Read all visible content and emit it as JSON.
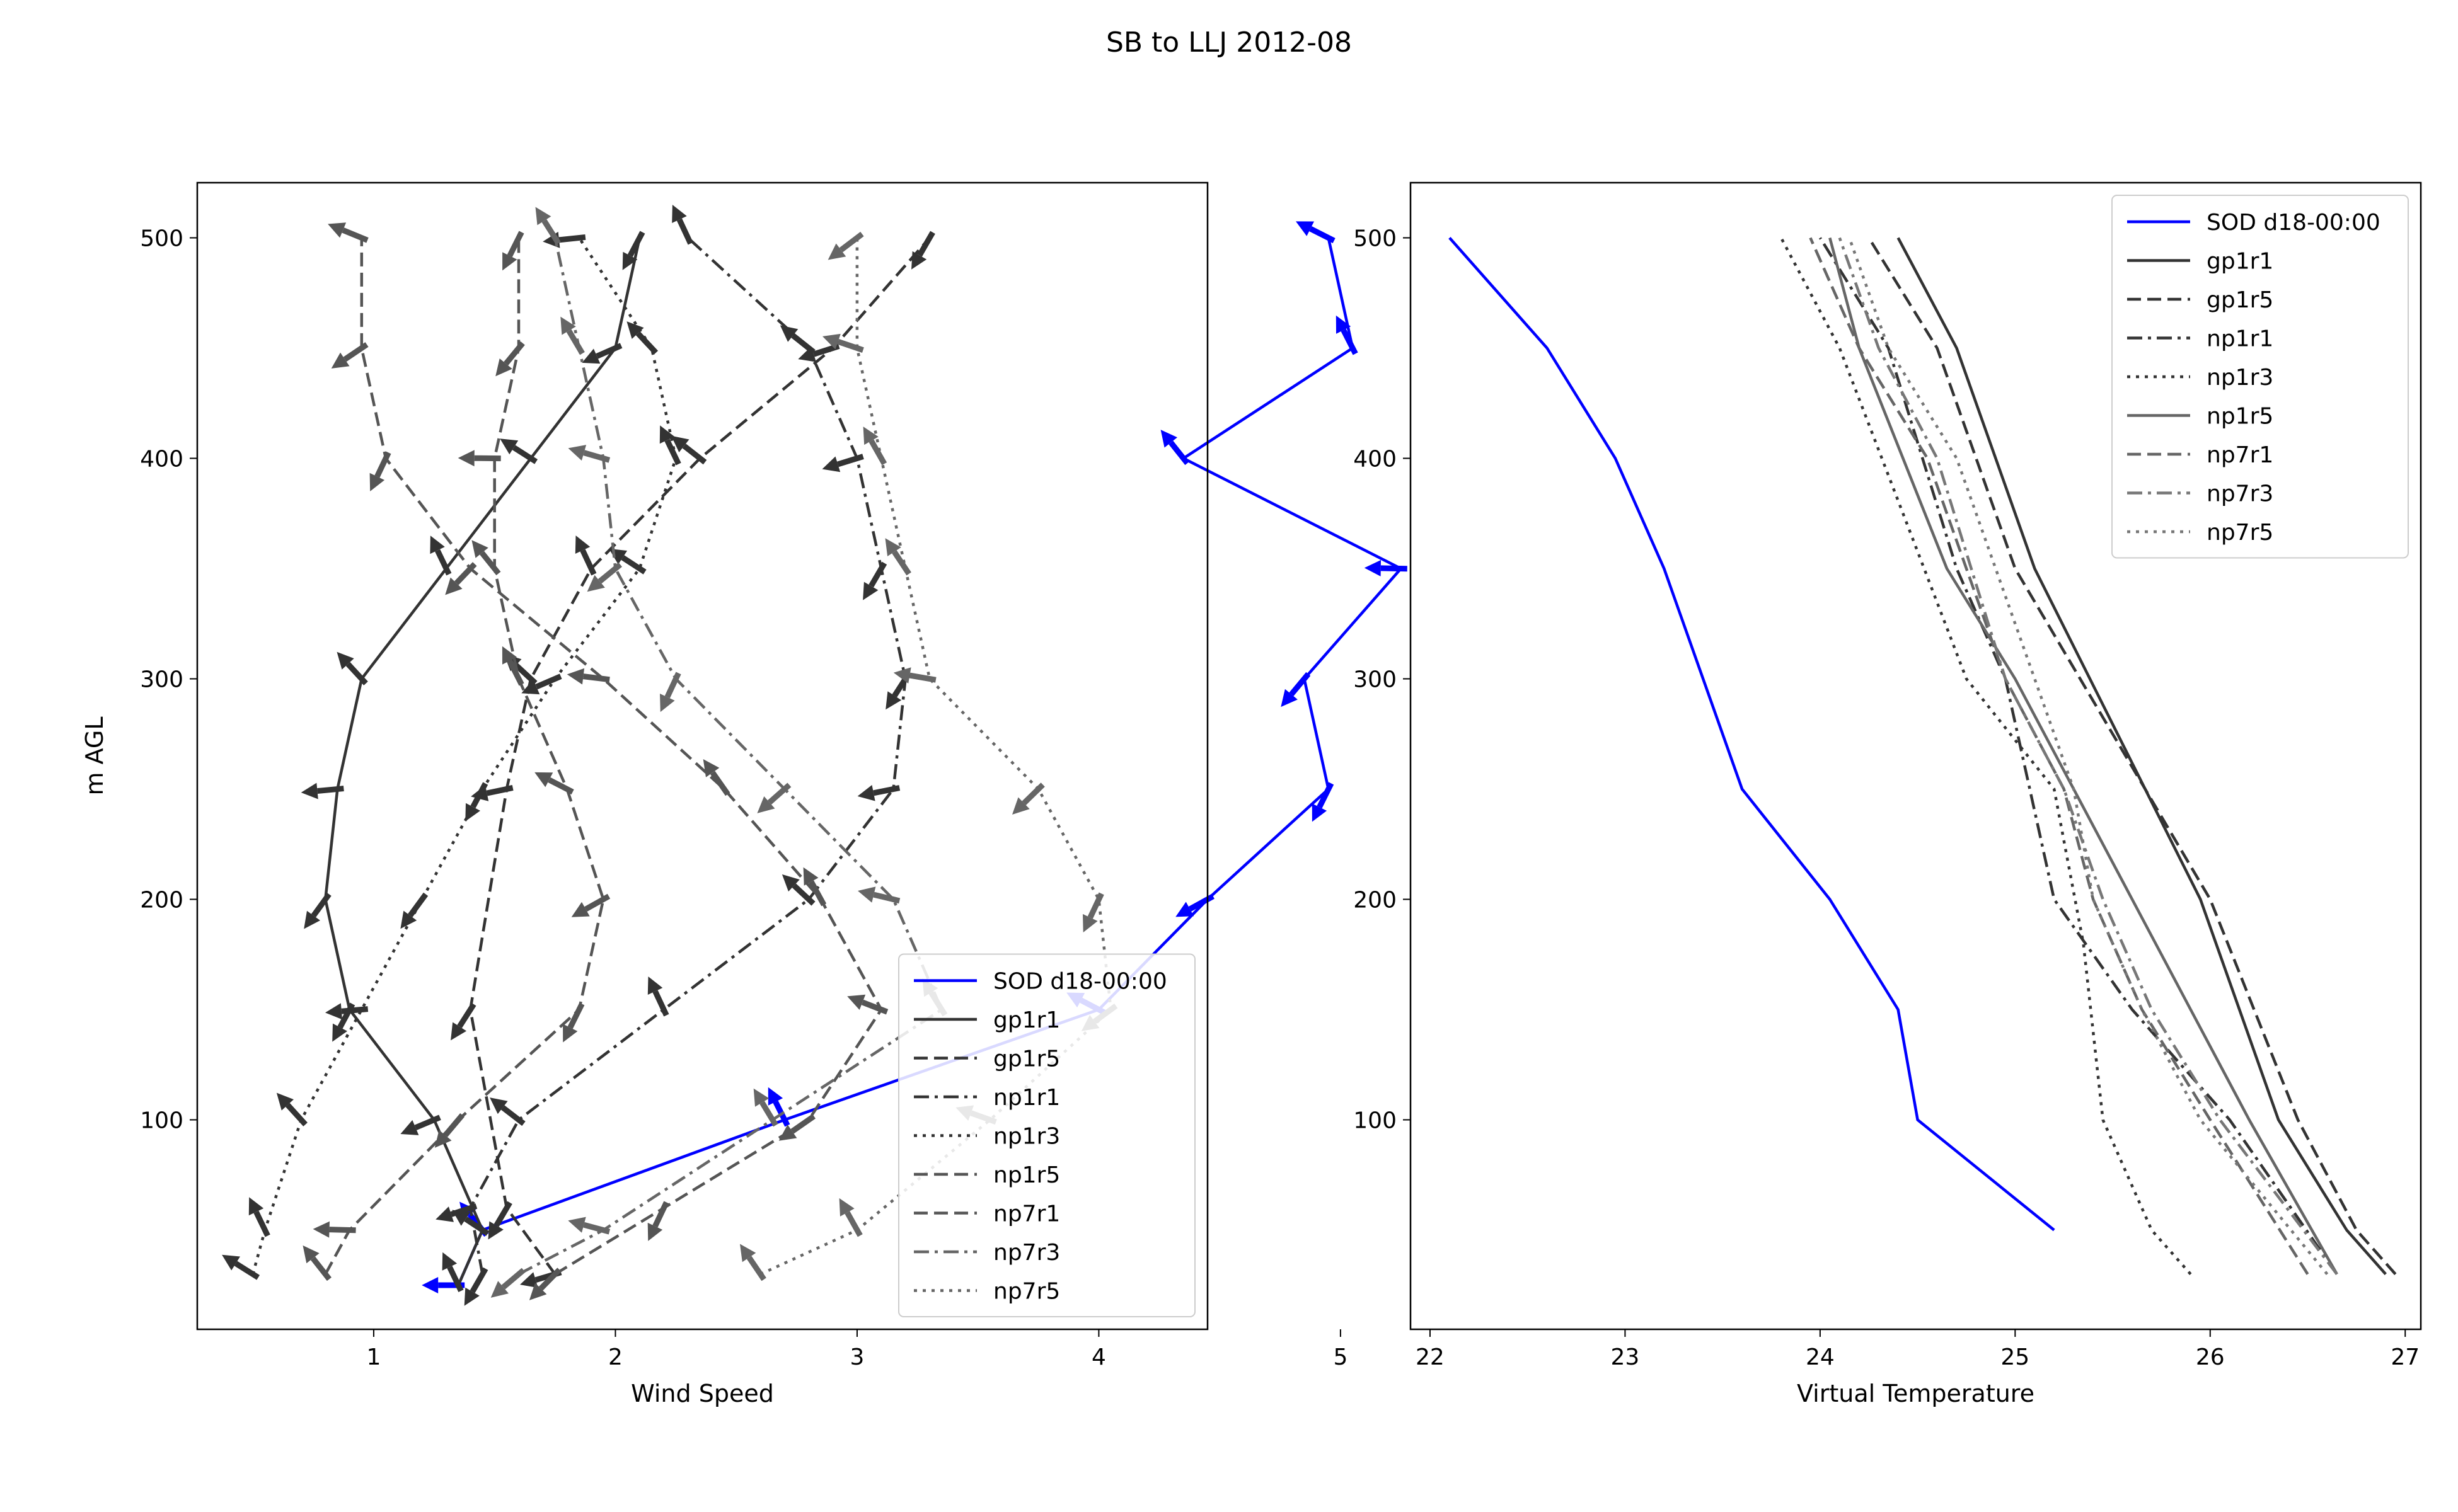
{
  "figure": {
    "suptitle": "SB to LLJ 2012-08"
  },
  "chart_data": [
    {
      "type": "line",
      "xlabel": "Wind Speed",
      "ylabel": "m AGL",
      "xlim": [
        0.27,
        4.45
      ],
      "ylim": [
        5,
        525
      ],
      "xticks": [
        1,
        2,
        3,
        4,
        5
      ],
      "yticks": [
        100,
        200,
        300,
        400,
        500
      ],
      "grid": false,
      "legend": "lower-right",
      "arrows": true,
      "series": [
        {
          "name": "SOD d18-00:00",
          "color": "#0000ff",
          "dash": "solid",
          "points": [
            [
              1.35,
              25
            ],
            [
              1.45,
              50
            ],
            [
              2.7,
              100
            ],
            [
              4.0,
              150
            ],
            [
              4.45,
              200
            ],
            [
              4.95,
              250
            ],
            [
              4.85,
              300
            ],
            [
              5.25,
              350
            ],
            [
              4.35,
              400
            ],
            [
              5.05,
              450
            ],
            [
              4.95,
              500
            ]
          ]
        },
        {
          "name": "gp1r1",
          "color": "#333333",
          "dash": "solid",
          "points": [
            [
              1.35,
              25
            ],
            [
              1.45,
              50
            ],
            [
              1.25,
              100
            ],
            [
              0.9,
              150
            ],
            [
              0.8,
              200
            ],
            [
              0.85,
              250
            ],
            [
              0.95,
              300
            ],
            [
              1.3,
              350
            ],
            [
              1.65,
              400
            ],
            [
              2.0,
              450
            ],
            [
              2.1,
              500
            ]
          ]
        },
        {
          "name": "gp1r5",
          "color": "#333333",
          "dash": "dashed",
          "points": [
            [
              1.75,
              30
            ],
            [
              1.55,
              60
            ],
            [
              1.4,
              150
            ],
            [
              1.55,
              250
            ],
            [
              1.65,
              300
            ],
            [
              1.9,
              350
            ],
            [
              2.35,
              400
            ],
            [
              2.9,
              450
            ],
            [
              3.3,
              500
            ]
          ]
        },
        {
          "name": "np1r1",
          "color": "#333333",
          "dash": "dashdot",
          "points": [
            [
              1.45,
              30
            ],
            [
              1.4,
              60
            ],
            [
              1.6,
              100
            ],
            [
              2.2,
              150
            ],
            [
              2.8,
              200
            ],
            [
              3.15,
              250
            ],
            [
              3.2,
              300
            ],
            [
              3.1,
              350
            ],
            [
              3.0,
              400
            ],
            [
              2.8,
              450
            ],
            [
              2.3,
              500
            ]
          ]
        },
        {
          "name": "np1r3",
          "color": "#333333",
          "dash": "dotted",
          "points": [
            [
              0.5,
              30
            ],
            [
              0.55,
              50
            ],
            [
              0.7,
              100
            ],
            [
              0.95,
              150
            ],
            [
              1.2,
              200
            ],
            [
              1.45,
              250
            ],
            [
              1.75,
              300
            ],
            [
              2.1,
              350
            ],
            [
              2.25,
              400
            ],
            [
              2.15,
              450
            ],
            [
              1.85,
              500
            ]
          ]
        },
        {
          "name": "np1r5",
          "color": "#555555",
          "dash": "dashed",
          "points": [
            [
              0.8,
              30
            ],
            [
              0.9,
              50
            ],
            [
              1.35,
              100
            ],
            [
              1.85,
              150
            ],
            [
              1.95,
              200
            ],
            [
              1.8,
              250
            ],
            [
              1.6,
              300
            ],
            [
              1.5,
              350
            ],
            [
              1.5,
              400
            ],
            [
              1.6,
              450
            ],
            [
              1.6,
              500
            ]
          ]
        },
        {
          "name": "np7r1",
          "color": "#555555",
          "dash": "dashed",
          "points": [
            [
              1.75,
              30
            ],
            [
              2.2,
              60
            ],
            [
              2.8,
              100
            ],
            [
              3.1,
              150
            ],
            [
              2.85,
              200
            ],
            [
              2.45,
              250
            ],
            [
              1.95,
              300
            ],
            [
              1.4,
              350
            ],
            [
              1.05,
              400
            ],
            [
              0.95,
              450
            ],
            [
              0.95,
              500
            ]
          ]
        },
        {
          "name": "np7r3",
          "color": "#666666",
          "dash": "dashdot",
          "points": [
            [
              1.6,
              30
            ],
            [
              1.95,
              50
            ],
            [
              2.65,
              100
            ],
            [
              3.35,
              150
            ],
            [
              3.15,
              200
            ],
            [
              2.7,
              250
            ],
            [
              2.25,
              300
            ],
            [
              2.0,
              350
            ],
            [
              1.95,
              400
            ],
            [
              1.85,
              450
            ],
            [
              1.75,
              500
            ]
          ]
        },
        {
          "name": "np7r5",
          "color": "#666666",
          "dash": "dotted",
          "points": [
            [
              2.6,
              30
            ],
            [
              3.0,
              50
            ],
            [
              3.55,
              100
            ],
            [
              4.05,
              150
            ],
            [
              4.0,
              200
            ],
            [
              3.75,
              250
            ],
            [
              3.3,
              300
            ],
            [
              3.2,
              350
            ],
            [
              3.1,
              400
            ],
            [
              3.0,
              450
            ],
            [
              3.0,
              500
            ]
          ]
        }
      ]
    },
    {
      "type": "line",
      "xlabel": "Virtual Temperature",
      "ylabel": "",
      "xlim": [
        21.9,
        27.08
      ],
      "ylim": [
        5,
        525
      ],
      "xticks": [
        22,
        23,
        24,
        25,
        26,
        27
      ],
      "yticks": [
        100,
        200,
        300,
        400,
        500
      ],
      "grid": false,
      "legend": "upper-right",
      "arrows": false,
      "series": [
        {
          "name": "SOD d18-00:00",
          "color": "#0000ff",
          "dash": "solid",
          "points": [
            [
              25.2,
              50
            ],
            [
              24.5,
              100
            ],
            [
              24.4,
              150
            ],
            [
              24.05,
              200
            ],
            [
              23.6,
              250
            ],
            [
              23.4,
              300
            ],
            [
              23.2,
              350
            ],
            [
              22.95,
              400
            ],
            [
              22.6,
              450
            ],
            [
              22.1,
              500
            ]
          ]
        },
        {
          "name": "gp1r1",
          "color": "#333333",
          "dash": "solid",
          "points": [
            [
              26.9,
              30
            ],
            [
              26.7,
              50
            ],
            [
              26.35,
              100
            ],
            [
              25.95,
              200
            ],
            [
              25.1,
              350
            ],
            [
              24.7,
              450
            ],
            [
              24.4,
              500
            ]
          ]
        },
        {
          "name": "gp1r5",
          "color": "#333333",
          "dash": "dashed",
          "points": [
            [
              26.95,
              30
            ],
            [
              26.75,
              50
            ],
            [
              26.45,
              100
            ],
            [
              26.0,
              200
            ],
            [
              25.0,
              350
            ],
            [
              24.6,
              450
            ],
            [
              24.25,
              500
            ]
          ]
        },
        {
          "name": "np1r1",
          "color": "#333333",
          "dash": "dashdot",
          "points": [
            [
              26.65,
              30
            ],
            [
              26.1,
              100
            ],
            [
              25.6,
              150
            ],
            [
              25.2,
              200
            ],
            [
              24.95,
              300
            ],
            [
              24.7,
              350
            ],
            [
              24.35,
              450
            ],
            [
              24.0,
              500
            ]
          ]
        },
        {
          "name": "np1r3",
          "color": "#333333",
          "dash": "dotted",
          "points": [
            [
              25.9,
              30
            ],
            [
              25.7,
              50
            ],
            [
              25.45,
              100
            ],
            [
              25.35,
              180
            ],
            [
              25.2,
              250
            ],
            [
              24.75,
              300
            ],
            [
              24.1,
              450
            ],
            [
              23.8,
              500
            ]
          ]
        },
        {
          "name": "np1r5",
          "color": "#666666",
          "dash": "solid",
          "points": [
            [
              26.65,
              30
            ],
            [
              26.2,
              100
            ],
            [
              25.9,
              150
            ],
            [
              25.6,
              200
            ],
            [
              25.3,
              250
            ],
            [
              25.0,
              300
            ],
            [
              24.65,
              350
            ],
            [
              24.2,
              450
            ],
            [
              24.05,
              500
            ]
          ]
        },
        {
          "name": "np7r1",
          "color": "#666666",
          "dash": "dashed",
          "points": [
            [
              26.5,
              30
            ],
            [
              26.0,
              100
            ],
            [
              25.65,
              150
            ],
            [
              25.4,
              200
            ],
            [
              25.25,
              250
            ],
            [
              24.95,
              300
            ],
            [
              24.55,
              400
            ],
            [
              24.2,
              450
            ],
            [
              23.95,
              500
            ]
          ]
        },
        {
          "name": "np7r3",
          "color": "#777777",
          "dash": "dashdot",
          "points": [
            [
              26.65,
              30
            ],
            [
              26.05,
              100
            ],
            [
              25.7,
              150
            ],
            [
              25.45,
              200
            ],
            [
              25.25,
              250
            ],
            [
              24.95,
              300
            ],
            [
              24.6,
              400
            ],
            [
              24.3,
              450
            ],
            [
              24.1,
              500
            ]
          ]
        },
        {
          "name": "np7r5",
          "color": "#777777",
          "dash": "dotted",
          "points": [
            [
              26.6,
              30
            ],
            [
              25.95,
              100
            ],
            [
              25.65,
              150
            ],
            [
              25.4,
              200
            ],
            [
              25.3,
              250
            ],
            [
              25.1,
              300
            ],
            [
              24.7,
              400
            ],
            [
              24.35,
              450
            ],
            [
              24.15,
              500
            ]
          ]
        }
      ]
    }
  ]
}
